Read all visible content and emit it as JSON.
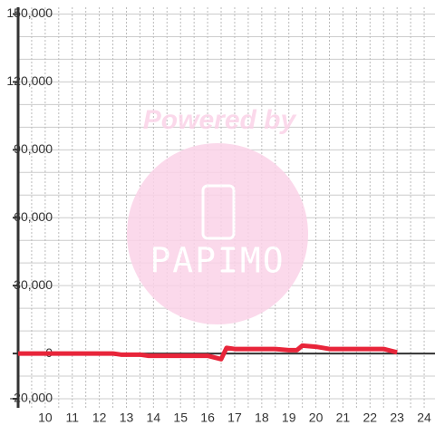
{
  "chart_data": {
    "type": "line",
    "x": [
      9,
      12.5,
      12.8,
      13.5,
      13.8,
      16,
      16.5,
      16.7,
      17,
      18.5,
      19,
      19.3,
      19.5,
      20,
      20.5,
      22.5,
      23
    ],
    "series": [
      {
        "color": "#e8253a",
        "values": [
          0,
          0,
          -500,
          -500,
          -1000,
          -1000,
          -2500,
          2500,
          2000,
          2000,
          1500,
          1500,
          3500,
          3000,
          2000,
          2000,
          500
        ]
      }
    ],
    "xlim": [
      9,
      24.4
    ],
    "ylim": [
      -24000,
      153000
    ],
    "xticks": [
      10,
      11,
      12,
      13,
      14,
      15,
      16,
      17,
      18,
      19,
      20,
      21,
      22,
      23,
      24
    ],
    "xminor": [
      9.5,
      10.5,
      11.5,
      12.5,
      13.5,
      14.5,
      15.5,
      16.5,
      17.5,
      18.5,
      19.5,
      20.5,
      21.5,
      22.5,
      23.5
    ],
    "yticks": [
      {
        "value": -20000,
        "label": "-20,000"
      },
      0,
      {
        "value": 30000,
        "label": "30,000"
      },
      {
        "value": 60000,
        "label": "60,000"
      },
      {
        "value": 90000,
        "label": "90,000"
      },
      {
        "value": 120000,
        "label": "120,000"
      },
      {
        "value": 150000,
        "label": "150,000"
      }
    ],
    "yminor": [
      -10000,
      10000,
      20000,
      40000,
      50000,
      70000,
      80000,
      100000,
      110000,
      130000,
      140000
    ],
    "grid": true,
    "watermark": {
      "caption": "Powered by",
      "logo": "PAPIMO"
    }
  }
}
